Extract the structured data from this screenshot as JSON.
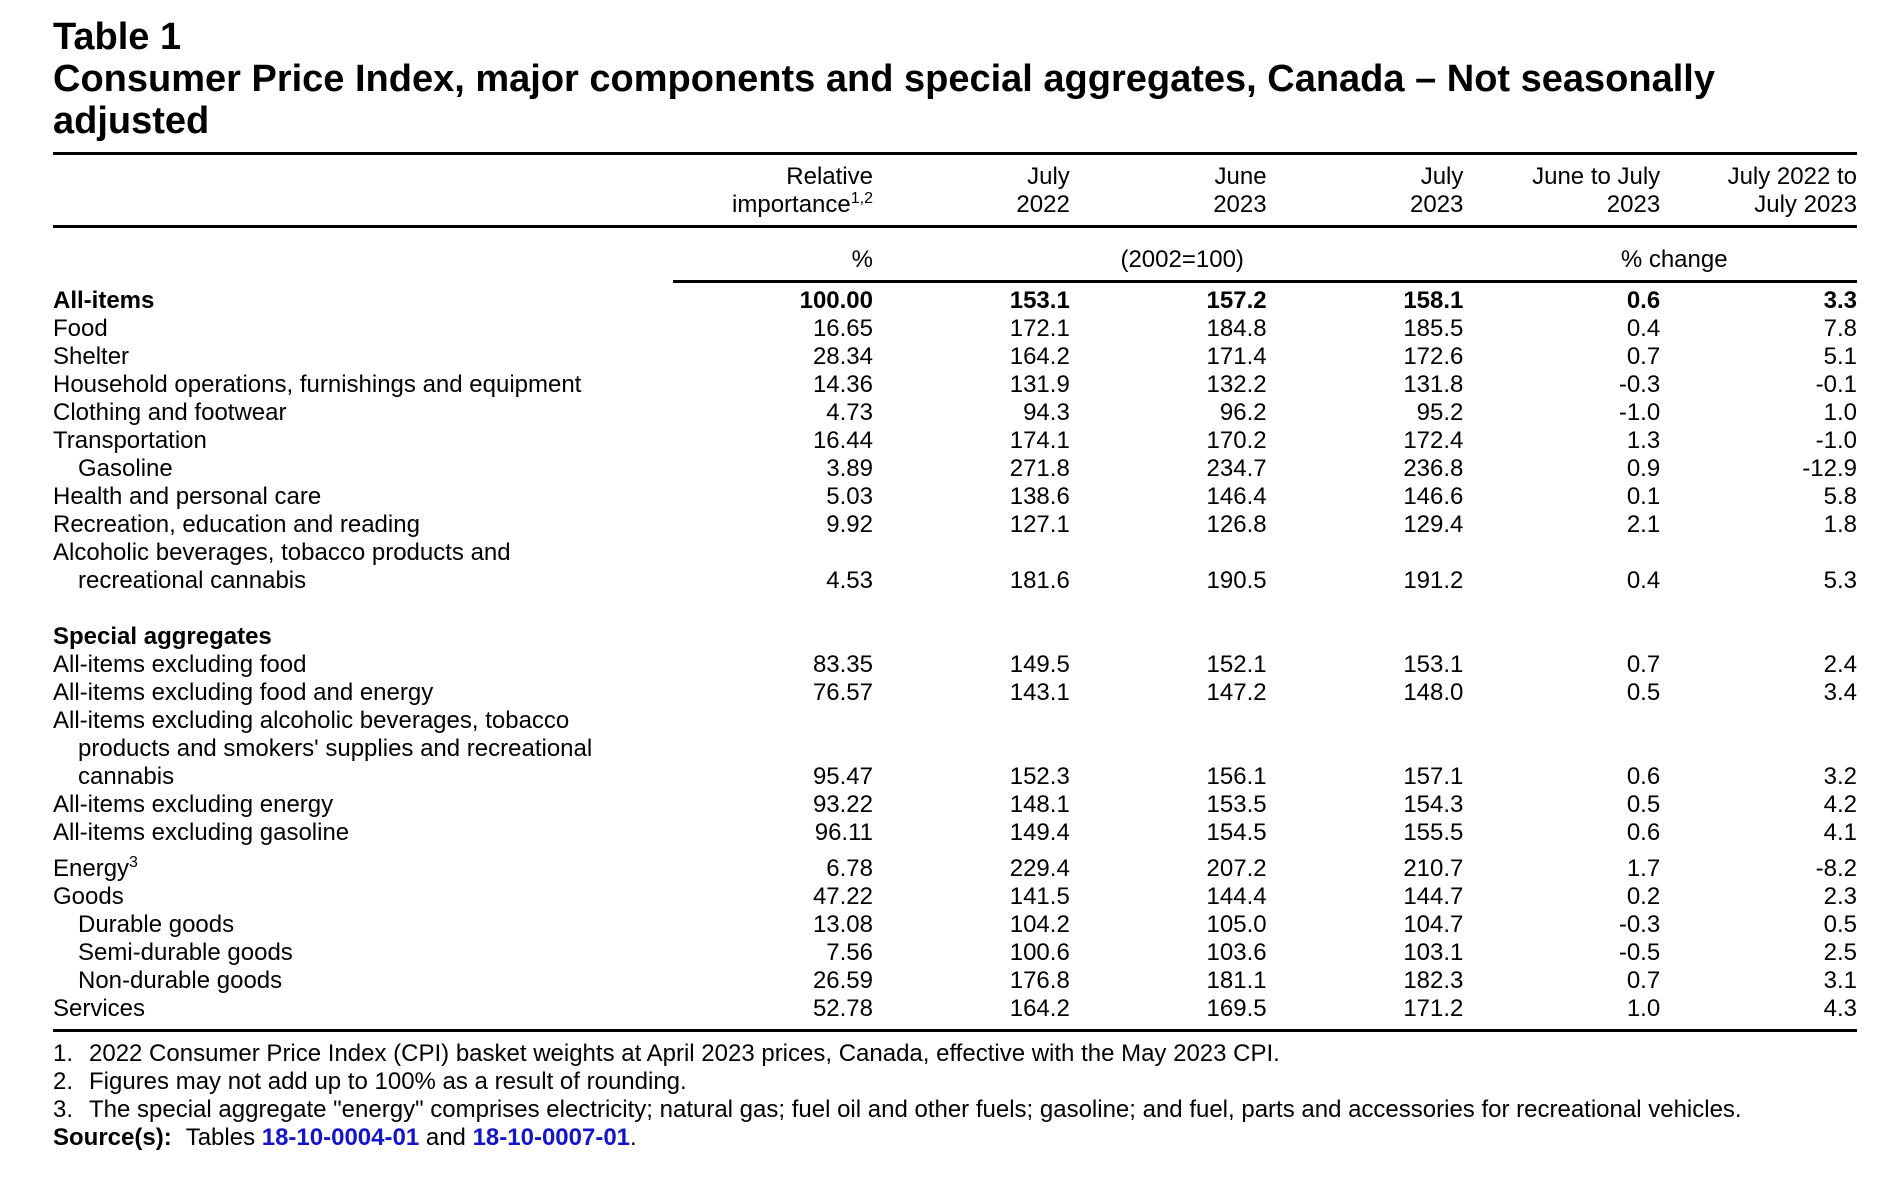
{
  "table": {
    "number": "Table 1",
    "title": "Consumer Price Index, major components and special aggregates, Canada – Not seasonally adjusted",
    "headers": {
      "relative_importance": [
        "Relative",
        "importance"
      ],
      "relative_importance_sup": "1,2",
      "july_2022": [
        "July",
        "2022"
      ],
      "june_2023": [
        "June",
        "2023"
      ],
      "july_2023": [
        "July",
        "2023"
      ],
      "june_to_july": [
        "June to July",
        "2023"
      ],
      "july_to_july": [
        "July 2022 to",
        "July 2023"
      ]
    },
    "units": {
      "weight": "%",
      "index": "(2002=100)",
      "change": "% change"
    },
    "main_rows": [
      {
        "label": [
          "All-items"
        ],
        "values": [
          "100.00",
          "153.1",
          "157.2",
          "158.1",
          "0.6",
          "3.3"
        ]
      },
      {
        "label": [
          "Food"
        ],
        "values": [
          "16.65",
          "172.1",
          "184.8",
          "185.5",
          "0.4",
          "7.8"
        ]
      },
      {
        "label": [
          "Shelter"
        ],
        "values": [
          "28.34",
          "164.2",
          "171.4",
          "172.6",
          "0.7",
          "5.1"
        ]
      },
      {
        "label": [
          "Household operations, furnishings and equipment"
        ],
        "values": [
          "14.36",
          "131.9",
          "132.2",
          "131.8",
          "-0.3",
          "-0.1"
        ]
      },
      {
        "label": [
          "Clothing and footwear"
        ],
        "values": [
          "4.73",
          "94.3",
          "96.2",
          "95.2",
          "-1.0",
          "1.0"
        ]
      },
      {
        "label": [
          "Transportation"
        ],
        "values": [
          "16.44",
          "174.1",
          "170.2",
          "172.4",
          "1.3",
          "-1.0"
        ]
      },
      {
        "label": [
          "Gasoline"
        ],
        "values": [
          "3.89",
          "271.8",
          "234.7",
          "236.8",
          "0.9",
          "-12.9"
        ]
      },
      {
        "label": [
          "Health and personal care"
        ],
        "values": [
          "5.03",
          "138.6",
          "146.4",
          "146.6",
          "0.1",
          "5.8"
        ]
      },
      {
        "label": [
          "Recreation, education and reading"
        ],
        "values": [
          "9.92",
          "127.1",
          "126.8",
          "129.4",
          "2.1",
          "1.8"
        ]
      },
      {
        "label": [
          "Alcoholic beverages, tobacco products and",
          "recreational cannabis"
        ],
        "values": [
          "4.53",
          "181.6",
          "190.5",
          "191.2",
          "0.4",
          "5.3"
        ]
      }
    ],
    "special_heading": "Special aggregates",
    "special_rows": [
      {
        "label": [
          "All-items excluding food"
        ],
        "values": [
          "83.35",
          "149.5",
          "152.1",
          "153.1",
          "0.7",
          "2.4"
        ]
      },
      {
        "label": [
          "All-items excluding food and energy"
        ],
        "values": [
          "76.57",
          "143.1",
          "147.2",
          "148.0",
          "0.5",
          "3.4"
        ]
      },
      {
        "label": [
          "All-items excluding alcoholic beverages, tobacco",
          "products and smokers' supplies and recreational",
          "cannabis"
        ],
        "values": [
          "95.47",
          "152.3",
          "156.1",
          "157.1",
          "0.6",
          "3.2"
        ]
      },
      {
        "label": [
          "All-items excluding energy"
        ],
        "values": [
          "93.22",
          "148.1",
          "153.5",
          "154.3",
          "0.5",
          "4.2"
        ]
      },
      {
        "label": [
          "All-items excluding gasoline"
        ],
        "values": [
          "96.11",
          "149.4",
          "154.5",
          "155.5",
          "0.6",
          "4.1"
        ]
      },
      {
        "label": [
          "Energy"
        ],
        "label_sup": "3",
        "values": [
          "6.78",
          "229.4",
          "207.2",
          "210.7",
          "1.7",
          "-8.2"
        ]
      },
      {
        "label": [
          "Goods"
        ],
        "values": [
          "47.22",
          "141.5",
          "144.4",
          "144.7",
          "0.2",
          "2.3"
        ]
      },
      {
        "label": [
          "Durable goods"
        ],
        "values": [
          "13.08",
          "104.2",
          "105.0",
          "104.7",
          "-0.3",
          "0.5"
        ]
      },
      {
        "label": [
          "Semi-durable goods"
        ],
        "values": [
          "7.56",
          "100.6",
          "103.6",
          "103.1",
          "-0.5",
          "2.5"
        ]
      },
      {
        "label": [
          "Non-durable goods"
        ],
        "values": [
          "26.59",
          "176.8",
          "181.1",
          "182.3",
          "0.7",
          "3.1"
        ]
      },
      {
        "label": [
          "Services"
        ],
        "values": [
          "52.78",
          "164.2",
          "169.5",
          "171.2",
          "1.0",
          "4.3"
        ]
      }
    ]
  },
  "footnotes": [
    {
      "num": "1.",
      "text": "2022 Consumer Price Index (CPI) basket weights at April 2023 prices, Canada, effective with the May 2023 CPI."
    },
    {
      "num": "2.",
      "text": "Figures may not add up to 100% as a result of rounding."
    },
    {
      "num": "3.",
      "text": "The special aggregate \"energy\" comprises electricity; natural gas; fuel oil and other fuels; gasoline; and fuel, parts and accessories for recreational vehicles."
    }
  ],
  "source": {
    "label": "Source(s):",
    "prefix": "Tables",
    "link1": "18-10-0004-01",
    "middle": "and",
    "link2": "18-10-0007-01",
    "suffix": "."
  }
}
